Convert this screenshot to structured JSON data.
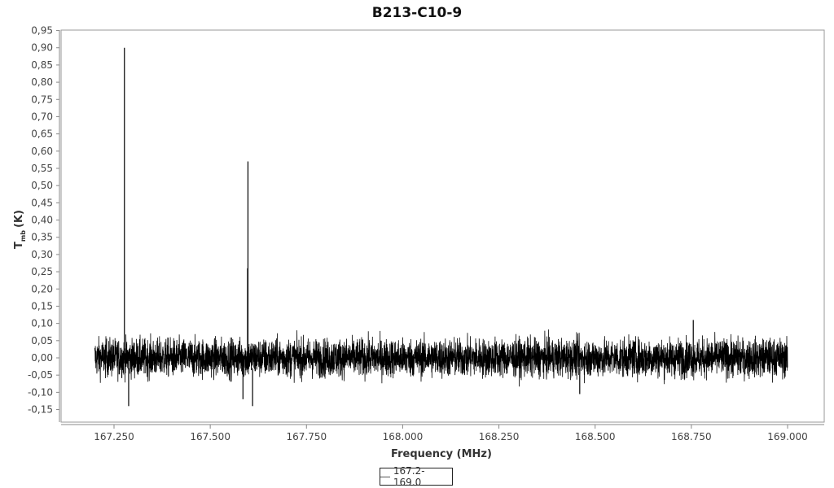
{
  "chart_data": {
    "type": "line",
    "title": "B213-C10-9",
    "xlabel": "Frequency (MHz)",
    "ylabel_main": "T",
    "ylabel_sub": "mb",
    "ylabel_unit": "(K)",
    "xlim": [
      167.1,
      169.1
    ],
    "ylim": [
      -0.17,
      0.95
    ],
    "x_ticks": [
      "167.250",
      "167.500",
      "167.750",
      "168.000",
      "168.250",
      "168.500",
      "168.750",
      "169.000"
    ],
    "x_tick_values": [
      167.25,
      167.5,
      167.75,
      168.0,
      168.25,
      168.5,
      168.75,
      169.0
    ],
    "y_ticks": [
      "0,95",
      "0,90",
      "0,85",
      "0,80",
      "0,75",
      "0,70",
      "0,65",
      "0,60",
      "0,55",
      "0,50",
      "0,45",
      "0,40",
      "0,35",
      "0,30",
      "0,25",
      "0,20",
      "0,15",
      "0,10",
      "0,05",
      "0,00",
      "-0,05",
      "-0,10",
      "-0,15"
    ],
    "y_tick_values": [
      0.95,
      0.9,
      0.85,
      0.8,
      0.75,
      0.7,
      0.65,
      0.6,
      0.55,
      0.5,
      0.45,
      0.4,
      0.35,
      0.3,
      0.25,
      0.2,
      0.15,
      0.1,
      0.05,
      0.0,
      -0.05,
      -0.1,
      -0.15
    ],
    "grid": false,
    "legend_position": "bottom",
    "series": [
      {
        "name": "167.2-169.0",
        "color": "#000000",
        "x_range": [
          167.2,
          169.0
        ],
        "baseline": 0.0,
        "noise_range": [
          -0.07,
          0.07
        ],
        "peaks": [
          {
            "x": 167.277,
            "y": 0.9
          },
          {
            "x": 167.598,
            "y": 0.57
          },
          {
            "x": 167.597,
            "y": 0.26
          },
          {
            "x": 168.755,
            "y": 0.11
          }
        ],
        "dips": [
          {
            "x": 167.288,
            "y": -0.14
          },
          {
            "x": 167.585,
            "y": -0.12
          },
          {
            "x": 167.61,
            "y": -0.14
          },
          {
            "x": 168.46,
            "y": -0.105
          }
        ]
      }
    ]
  }
}
